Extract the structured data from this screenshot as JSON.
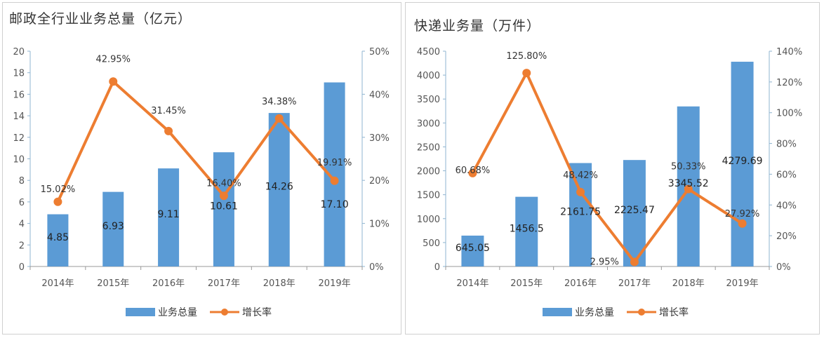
{
  "colors": {
    "bar": "#5b9bd5",
    "line": "#ed7d31",
    "axis": "#8fb4d0",
    "text": "#555555"
  },
  "chart_data": [
    {
      "type": "bar",
      "title": "邮政全行业业务总量（亿元）",
      "categories": [
        "2014年",
        "2015年",
        "2016年",
        "2017年",
        "2018年",
        "2019年"
      ],
      "series": [
        {
          "name": "业务总量",
          "type": "bar",
          "axis": "left",
          "values": [
            4.85,
            6.93,
            9.11,
            10.61,
            14.26,
            17.1
          ],
          "labels": [
            "4.85",
            "6.93",
            "9.11",
            "10.61",
            "14.26",
            "17.10"
          ]
        },
        {
          "name": "增长率",
          "type": "line",
          "axis": "right",
          "values": [
            15.02,
            42.95,
            31.45,
            16.4,
            34.38,
            19.91
          ],
          "labels": [
            "15.02%",
            "42.95%",
            "31.45%",
            "16.40%",
            "34.38%",
            "19.91%"
          ]
        }
      ],
      "ylim": [
        0,
        20
      ],
      "yticks": [
        "0",
        "2",
        "4",
        "6",
        "8",
        "10",
        "12",
        "14",
        "16",
        "18",
        "20"
      ],
      "y2lim": [
        0,
        50
      ],
      "y2ticks": [
        "0%",
        "10%",
        "20%",
        "30%",
        "40%",
        "50%"
      ],
      "legend": "bottom"
    },
    {
      "type": "bar",
      "title": "快递业务量（万件）",
      "categories": [
        "2014年",
        "2015年",
        "2016年",
        "2017年",
        "2018年",
        "2019年"
      ],
      "series": [
        {
          "name": "业务总量",
          "type": "bar",
          "axis": "left",
          "values": [
            645.05,
            1456.5,
            2161.75,
            2225.47,
            3345.52,
            4279.69
          ],
          "labels": [
            "645.05",
            "1456.5",
            "2161.75",
            "2225.47",
            "3345.52",
            "4279.69"
          ]
        },
        {
          "name": "增长率",
          "type": "line",
          "axis": "right",
          "values": [
            60.68,
            125.8,
            48.42,
            2.95,
            50.33,
            27.92
          ],
          "labels": [
            "60.68%",
            "125.80%",
            "48.42%",
            "2.95%",
            "50.33%",
            "27.92%"
          ]
        }
      ],
      "ylim": [
        0,
        4500
      ],
      "yticks": [
        "0",
        "500",
        "1000",
        "1500",
        "2000",
        "2500",
        "3000",
        "3500",
        "4000",
        "4500"
      ],
      "y2lim": [
        0,
        140
      ],
      "y2ticks": [
        "0%",
        "20%",
        "40%",
        "60%",
        "80%",
        "100%",
        "120%",
        "140%"
      ],
      "legend": "bottom"
    }
  ]
}
